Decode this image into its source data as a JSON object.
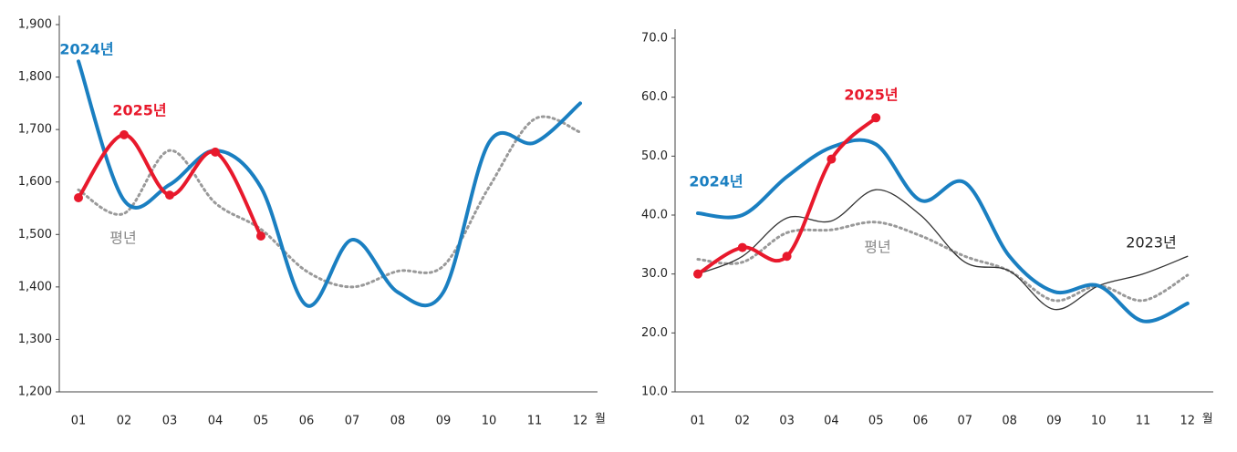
{
  "chart_data": [
    {
      "type": "line",
      "x_unit": "월",
      "categories": [
        "01",
        "02",
        "03",
        "04",
        "05",
        "06",
        "07",
        "08",
        "09",
        "10",
        "11",
        "12"
      ],
      "ylim": [
        1200,
        1900
      ],
      "yticks": [
        {
          "value": 1200,
          "label": "1,200"
        },
        {
          "value": 1300,
          "label": "1,300"
        },
        {
          "value": 1400,
          "label": "1,400"
        },
        {
          "value": 1500,
          "label": "1,500"
        },
        {
          "value": 1600,
          "label": "1,600"
        },
        {
          "value": 1700,
          "label": "1,700"
        },
        {
          "value": 1800,
          "label": "1,800"
        },
        {
          "value": 1900,
          "label": "1,900"
        }
      ],
      "series": [
        {
          "name": "평년",
          "color": "#999999",
          "style": "dotted",
          "values": [
            1585,
            1540,
            1660,
            1560,
            1510,
            1430,
            1400,
            1430,
            1440,
            1590,
            1720,
            1695
          ]
        },
        {
          "name": "2024년",
          "color": "#1a7fc1",
          "style": "solid",
          "values": [
            1830,
            1565,
            1595,
            1660,
            1590,
            1365,
            1490,
            1390,
            1390,
            1675,
            1675,
            1750
          ]
        },
        {
          "name": "2025년",
          "color": "#e8192c",
          "style": "markers",
          "values": [
            1570,
            1690,
            1575,
            1657,
            1497,
            null,
            null,
            null,
            null,
            null,
            null,
            null
          ]
        }
      ]
    },
    {
      "type": "line",
      "x_unit": "월",
      "categories": [
        "01",
        "02",
        "03",
        "04",
        "05",
        "06",
        "07",
        "08",
        "09",
        "10",
        "11",
        "12"
      ],
      "ylim": [
        10,
        70
      ],
      "yticks": [
        {
          "value": 10,
          "label": "10.0"
        },
        {
          "value": 20,
          "label": "20.0"
        },
        {
          "value": 30,
          "label": "30.0"
        },
        {
          "value": 40,
          "label": "40.0"
        },
        {
          "value": 50,
          "label": "50.0"
        },
        {
          "value": 60,
          "label": "60.0"
        },
        {
          "value": 70,
          "label": "70.0"
        }
      ],
      "series": [
        {
          "name": "평년",
          "color": "#999999",
          "style": "dotted",
          "values": [
            32.5,
            32,
            37,
            37.5,
            38.8,
            36.5,
            33,
            30.5,
            25.5,
            28,
            25.5,
            29.8
          ]
        },
        {
          "name": "2023년",
          "color": "#333333",
          "style": "thin",
          "values": [
            30,
            33,
            39.5,
            39,
            44.3,
            40,
            32,
            30.5,
            24,
            28,
            30,
            33
          ]
        },
        {
          "name": "2024년",
          "color": "#1a7fc1",
          "style": "solid",
          "values": [
            40.3,
            40,
            46.5,
            51.5,
            52,
            42.5,
            45.5,
            33,
            27,
            28,
            22,
            25
          ]
        },
        {
          "name": "2025년",
          "color": "#e8192c",
          "style": "markers",
          "values": [
            30,
            34.5,
            33,
            49.5,
            56.5,
            null,
            null,
            null,
            null,
            null,
            null,
            null
          ]
        }
      ]
    }
  ]
}
